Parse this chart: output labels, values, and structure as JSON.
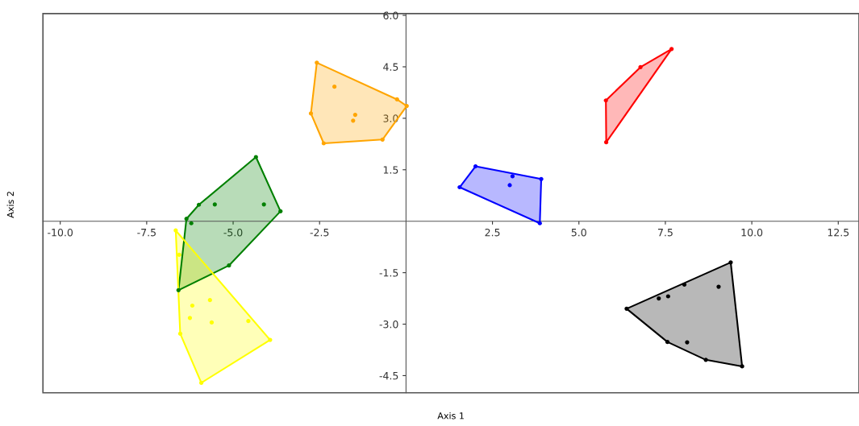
{
  "chart_data": {
    "type": "scatter",
    "xlabel": "Axis 1",
    "ylabel": "Axis 2",
    "xlim": [
      -10.5,
      13.1
    ],
    "ylim": [
      -5.0,
      6.05
    ],
    "xticks": [
      {
        "value": -10,
        "label": "-10.0"
      },
      -7.5,
      {
        "value": -5,
        "label": "-5.0"
      },
      -2.5,
      2.5,
      {
        "value": 5,
        "label": "5.0"
      },
      7.5,
      {
        "value": 10,
        "label": "10.0"
      },
      12.5
    ],
    "yticks": [
      -4.5,
      {
        "value": -3,
        "label": "-3.0"
      },
      -1.5,
      1.5,
      {
        "value": 3,
        "label": "3.0"
      },
      4.5,
      {
        "value": 6,
        "label": "6.0"
      }
    ],
    "grid": false,
    "marker": "circle",
    "series": [
      {
        "color": "#ffa500",
        "x": [
          -2.58,
          -2.07,
          -0.26,
          0.02,
          -1.47,
          -1.53,
          -2.75,
          -2.38,
          -0.68
        ],
        "values": [
          4.62,
          3.92,
          3.55,
          3.36,
          3.1,
          2.93,
          3.14,
          2.27,
          2.38
        ]
      },
      {
        "color": "#008000",
        "x": [
          -4.34,
          -3.63,
          -4.11,
          -5.53,
          -5.99,
          -6.35,
          -6.21,
          -5.12,
          -6.58
        ],
        "values": [
          1.87,
          0.29,
          0.49,
          0.49,
          0.48,
          0.07,
          -0.06,
          -1.29,
          -2.01
        ]
      },
      {
        "color": "#ffff00",
        "x": [
          -6.66,
          -6.56,
          -6.53,
          -5.92,
          -3.93,
          -4.56,
          -5.62,
          -6.25,
          -6.18,
          -5.67
        ],
        "values": [
          -0.27,
          -0.98,
          -3.28,
          -4.71,
          -3.46,
          -2.91,
          -2.95,
          -2.82,
          -2.46,
          -2.3
        ]
      },
      {
        "color": "#0000ff",
        "x": [
          2.01,
          1.55,
          3.08,
          3.0,
          3.91,
          3.87
        ],
        "values": [
          1.6,
          0.99,
          1.31,
          1.05,
          1.23,
          -0.06
        ]
      },
      {
        "color": "#ff0000",
        "x": [
          7.68,
          6.78,
          5.78,
          5.79
        ],
        "values": [
          5.02,
          4.49,
          3.52,
          2.3
        ]
      },
      {
        "color": "#000000",
        "x": [
          9.39,
          9.04,
          8.05,
          7.58,
          7.31,
          6.38,
          7.56,
          8.13,
          8.67,
          9.72
        ],
        "values": [
          -1.2,
          -1.91,
          -1.85,
          -2.19,
          -2.25,
          -2.55,
          -3.52,
          -3.53,
          -4.04,
          -4.23
        ]
      }
    ]
  }
}
